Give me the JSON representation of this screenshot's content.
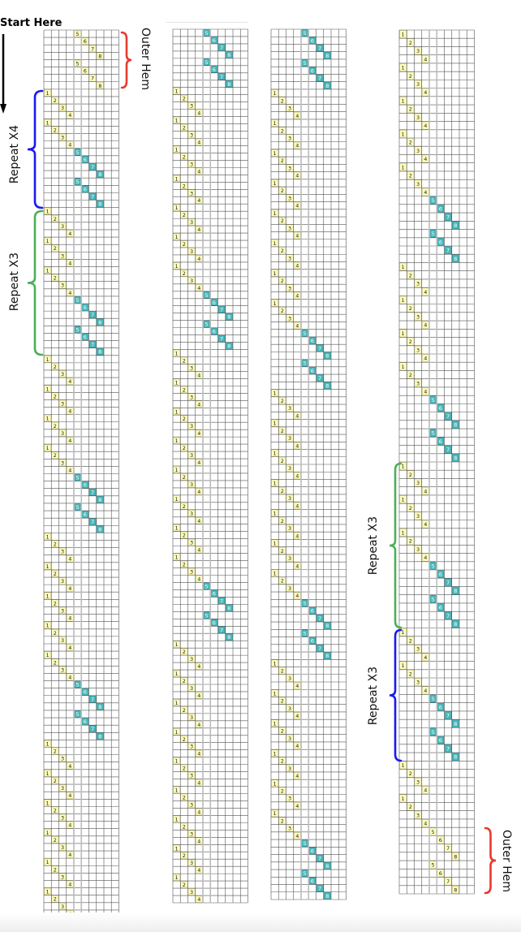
{
  "start_label": "Start Here",
  "colors": {
    "yellow": "#ffffc0",
    "yellow_border": "#c9c27a",
    "teal": "#4db6b9",
    "teal_border": "#2a8f92",
    "grid": "#555555",
    "grid_light": "#bbbbbb"
  },
  "grid_columns_per_panel": 10,
  "panels": [
    {
      "groups": [
        {
          "stitches": [
            5,
            6,
            7,
            8
          ],
          "color": "yellow",
          "times": 2
        },
        {
          "stitches": [
            1,
            2,
            3,
            4
          ],
          "color": "yellow",
          "times": 2
        },
        {
          "stitches": [
            5,
            6,
            7,
            8
          ],
          "color": "teal",
          "times": 2
        },
        {
          "stitches": [
            1,
            2,
            3,
            4
          ],
          "color": "yellow",
          "times": 3
        },
        {
          "stitches": [
            5,
            6,
            7,
            8
          ],
          "color": "teal",
          "times": 2
        },
        {
          "stitches": [
            1,
            2,
            3,
            4
          ],
          "color": "yellow",
          "times": 4
        },
        {
          "stitches": [
            5,
            6,
            7,
            8
          ],
          "color": "teal",
          "times": 2
        },
        {
          "stitches": [
            1,
            2,
            3,
            4
          ],
          "color": "yellow",
          "times": 5
        },
        {
          "stitches": [
            5,
            6,
            7,
            8
          ],
          "color": "teal",
          "times": 2
        },
        {
          "stitches": [
            1,
            2,
            3,
            4
          ],
          "color": "yellow",
          "times": 6
        }
      ]
    },
    {
      "groups": [
        {
          "stitches": [
            5,
            6,
            7,
            8
          ],
          "color": "teal",
          "times": 2
        },
        {
          "stitches": [
            1,
            2,
            3,
            4
          ],
          "color": "yellow",
          "times": 7
        },
        {
          "stitches": [
            5,
            6,
            7,
            8
          ],
          "color": "teal",
          "times": 2
        },
        {
          "stitches": [
            1,
            2,
            3,
            4
          ],
          "color": "yellow",
          "times": 8
        },
        {
          "stitches": [
            5,
            6,
            7,
            8
          ],
          "color": "teal",
          "times": 2
        },
        {
          "stitches": [
            1,
            2,
            3,
            4
          ],
          "color": "yellow",
          "times": 9
        }
      ]
    },
    {
      "groups": [
        {
          "stitches": [
            5,
            6,
            7,
            8
          ],
          "color": "teal",
          "times": 2
        },
        {
          "stitches": [
            1,
            2,
            3,
            4
          ],
          "color": "yellow",
          "times": 8
        },
        {
          "stitches": [
            5,
            6,
            7,
            8
          ],
          "color": "teal",
          "times": 2
        },
        {
          "stitches": [
            1,
            2,
            3,
            4
          ],
          "color": "yellow",
          "times": 7
        },
        {
          "stitches": [
            5,
            6,
            7,
            8
          ],
          "color": "teal",
          "times": 2
        },
        {
          "stitches": [
            1,
            2,
            3,
            4
          ],
          "color": "yellow",
          "times": 6
        },
        {
          "stitches": [
            5,
            6,
            7,
            8
          ],
          "color": "teal",
          "times": 2
        }
      ]
    },
    {
      "groups": [
        {
          "stitches": [
            1,
            2,
            3,
            4
          ],
          "color": "yellow",
          "times": 5
        },
        {
          "stitches": [
            5,
            6,
            7,
            8
          ],
          "color": "teal",
          "times": 2
        },
        {
          "stitches": [
            1,
            2,
            3,
            4
          ],
          "color": "yellow",
          "times": 4
        },
        {
          "stitches": [
            5,
            6,
            7,
            8
          ],
          "color": "teal",
          "times": 2
        },
        {
          "stitches": [
            1,
            2,
            3,
            4
          ],
          "color": "yellow",
          "times": 3
        },
        {
          "stitches": [
            5,
            6,
            7,
            8
          ],
          "color": "teal",
          "times": 2
        },
        {
          "stitches": [
            1,
            2,
            3,
            4
          ],
          "color": "yellow",
          "times": 2
        },
        {
          "stitches": [
            5,
            6,
            7,
            8
          ],
          "color": "teal",
          "times": 2
        },
        {
          "stitches": [
            1,
            2,
            3,
            4
          ],
          "color": "yellow",
          "times": 2
        },
        {
          "stitches": [
            5,
            6,
            7,
            8
          ],
          "color": "yellow",
          "times": 2
        }
      ]
    }
  ],
  "annotations": [
    {
      "text": "Outer Hem",
      "color": "#e8392e"
    },
    {
      "text": "Repeat X4",
      "color": "#1a1aee"
    },
    {
      "text": "Repeat X3",
      "color": "#4caf5a"
    },
    {
      "text": "Repeat X3",
      "color": "#4caf5a"
    },
    {
      "text": "Repeat X3",
      "color": "#1a1aee"
    },
    {
      "text": "Outer Hem",
      "color": "#e8392e"
    }
  ]
}
